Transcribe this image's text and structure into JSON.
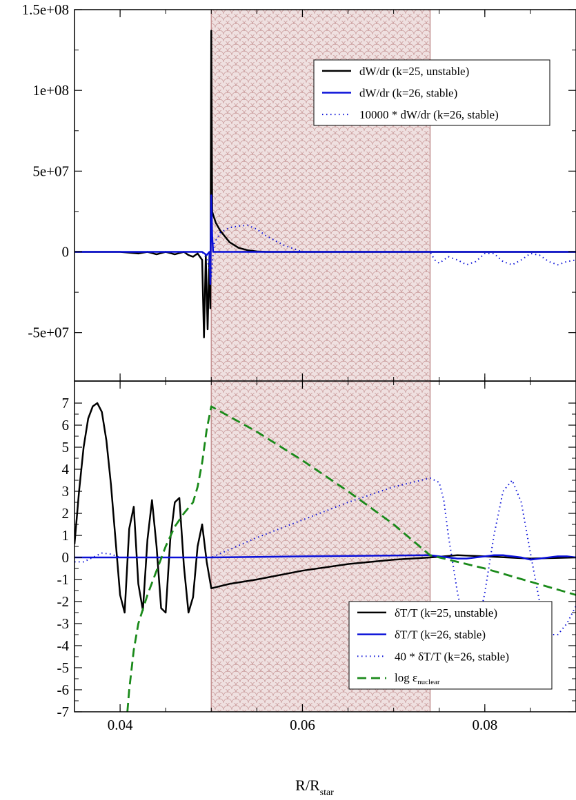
{
  "colors": {
    "black": "#000000",
    "blue": "#0a10d8",
    "green": "#1a8a1a",
    "shade_fill": "#efe0e0",
    "shade_pattern": "#c49292"
  },
  "xlabel_main": "R/R",
  "xlabel_sub": "star",
  "chart_data": [
    {
      "type": "line",
      "panel": "top",
      "xlim": [
        0.035,
        0.09
      ],
      "ylim": [
        -80000000,
        150000000
      ],
      "xticks": [
        0.04,
        0.06,
        0.08
      ],
      "yticks": [
        {
          "value": 150000000,
          "label": "1.5e+08"
        },
        {
          "value": 100000000,
          "label": "1e+08"
        },
        {
          "value": 50000000,
          "label": "5e+07"
        },
        {
          "value": 0,
          "label": "0"
        },
        {
          "value": -50000000,
          "label": "-5e+07"
        }
      ],
      "shaded_region": [
        0.05,
        0.074
      ],
      "legend_position": "top-right",
      "series": [
        {
          "name": "dW/dr (k=25, unstable)",
          "style": "solid-black",
          "x": [
            0.035,
            0.04,
            0.042,
            0.043,
            0.044,
            0.045,
            0.046,
            0.047,
            0.0475,
            0.048,
            0.0485,
            0.049,
            0.0492,
            0.0494,
            0.0496,
            0.0498,
            0.0499,
            0.05,
            0.0501,
            0.0502,
            0.0505,
            0.051,
            0.052,
            0.053,
            0.054,
            0.055,
            0.056,
            0.06,
            0.09
          ],
          "y": [
            0,
            0,
            -1000000,
            0,
            -1500000,
            0,
            -1500000,
            0,
            -2000000,
            -3000000,
            -1000000,
            -5000000,
            -53000000,
            -2000000,
            -48000000,
            -2000000,
            -35000000,
            137000000,
            25000000,
            23000000,
            18000000,
            13000000,
            6000000,
            2500000,
            1000000,
            300000,
            0,
            0,
            0
          ]
        },
        {
          "name": "dW/dr (k=26, stable)",
          "style": "solid-blue",
          "x": [
            0.035,
            0.049,
            0.0495,
            0.0498,
            0.0499,
            0.05,
            0.0501,
            0.0502,
            0.0505,
            0.09
          ],
          "y": [
            0,
            0,
            -2000000,
            0,
            -20000000,
            35000000,
            10000000,
            0,
            0,
            0
          ]
        },
        {
          "name": "10000 * dW/dr (k=26, stable)",
          "style": "dotted-blue",
          "x": [
            0.035,
            0.049,
            0.0495,
            0.05,
            0.0503,
            0.051,
            0.052,
            0.053,
            0.054,
            0.055,
            0.056,
            0.058,
            0.06,
            0.074,
            0.0745,
            0.075,
            0.076,
            0.077,
            0.078,
            0.079,
            0.08,
            0.081,
            0.082,
            0.083,
            0.084,
            0.085,
            0.086,
            0.087,
            0.088,
            0.089,
            0.09
          ],
          "y": [
            0,
            0,
            -4000000,
            -15000000,
            5000000,
            12000000,
            15000000,
            16000000,
            16500000,
            14000000,
            10000000,
            4000000,
            0,
            0,
            -5000000,
            -7000000,
            -3000000,
            -5000000,
            -8000000,
            -6000000,
            -1000000,
            -1000000,
            -6000000,
            -8000000,
            -5000000,
            -1000000,
            -2000000,
            -6000000,
            -8000000,
            -6000000,
            -5000000
          ]
        }
      ]
    },
    {
      "type": "line",
      "panel": "bottom",
      "xlim": [
        0.035,
        0.09
      ],
      "ylim": [
        -7,
        8
      ],
      "xticks": [
        0.04,
        0.06,
        0.08
      ],
      "xtick_labels": [
        "0.04",
        "0.06",
        "0.08"
      ],
      "yticks": [
        {
          "value": 7,
          "label": "7"
        },
        {
          "value": 6,
          "label": "6"
        },
        {
          "value": 5,
          "label": "5"
        },
        {
          "value": 4,
          "label": "4"
        },
        {
          "value": 3,
          "label": "3"
        },
        {
          "value": 2,
          "label": "2"
        },
        {
          "value": 1,
          "label": "1"
        },
        {
          "value": 0,
          "label": "0"
        },
        {
          "value": -1,
          "label": "-1"
        },
        {
          "value": -2,
          "label": "-2"
        },
        {
          "value": -3,
          "label": "-3"
        },
        {
          "value": -4,
          "label": "-4"
        },
        {
          "value": -5,
          "label": "-5"
        },
        {
          "value": -6,
          "label": "-6"
        },
        {
          "value": -7,
          "label": "-7"
        }
      ],
      "shaded_region": [
        0.05,
        0.074
      ],
      "legend_position": "bottom-right",
      "series": [
        {
          "name": "δT/T (k=25, unstable)",
          "style": "solid-black",
          "x": [
            0.035,
            0.0355,
            0.036,
            0.0365,
            0.037,
            0.0375,
            0.038,
            0.0385,
            0.039,
            0.0395,
            0.04,
            0.0405,
            0.041,
            0.0415,
            0.042,
            0.0425,
            0.043,
            0.0435,
            0.044,
            0.0445,
            0.045,
            0.0455,
            0.046,
            0.0465,
            0.047,
            0.0475,
            0.048,
            0.0485,
            0.049,
            0.0495,
            0.05,
            0.052,
            0.055,
            0.06,
            0.065,
            0.07,
            0.074,
            0.077,
            0.08,
            0.085,
            0.09
          ],
          "y": [
            0.6,
            3.0,
            5.0,
            6.3,
            6.85,
            7.0,
            6.6,
            5.3,
            3.3,
            0.8,
            -1.7,
            -2.5,
            1.3,
            2.3,
            -1.2,
            -2.4,
            0.8,
            2.6,
            0.5,
            -2.3,
            -2.5,
            0.8,
            2.5,
            2.7,
            -0.4,
            -2.5,
            -1.8,
            0.5,
            1.5,
            -0.2,
            -1.4,
            -1.2,
            -1.0,
            -0.6,
            -0.3,
            -0.1,
            0.0,
            0.1,
            0.05,
            -0.05,
            0.0
          ]
        },
        {
          "name": "δT/T (k=26, stable)",
          "style": "solid-blue",
          "x": [
            0.035,
            0.05,
            0.06,
            0.074,
            0.075,
            0.076,
            0.077,
            0.078,
            0.079,
            0.08,
            0.081,
            0.082,
            0.083,
            0.084,
            0.085,
            0.086,
            0.087,
            0.088,
            0.089,
            0.09
          ],
          "y": [
            0.0,
            0.0,
            0.05,
            0.1,
            0.05,
            0.0,
            -0.05,
            -0.05,
            0.0,
            0.05,
            0.1,
            0.1,
            0.05,
            0.0,
            -0.1,
            -0.05,
            0.0,
            0.05,
            0.05,
            0.0
          ]
        },
        {
          "name": "40 * δT/T (k=26, stable)",
          "style": "dotted-blue",
          "x": [
            0.035,
            0.036,
            0.037,
            0.038,
            0.039,
            0.04,
            0.045,
            0.05,
            0.055,
            0.06,
            0.065,
            0.07,
            0.074,
            0.075,
            0.0755,
            0.076,
            0.077,
            0.078,
            0.079,
            0.08,
            0.081,
            0.082,
            0.083,
            0.084,
            0.085,
            0.086,
            0.087,
            0.088,
            0.089,
            0.09
          ],
          "y": [
            -0.2,
            -0.2,
            0.0,
            0.2,
            0.15,
            0.0,
            0.0,
            0.0,
            0.9,
            1.7,
            2.5,
            3.2,
            3.6,
            3.4,
            2.6,
            1.0,
            -1.6,
            -3.5,
            -3.6,
            -1.6,
            1.0,
            3.0,
            3.5,
            2.5,
            0.2,
            -2.0,
            -3.5,
            -3.5,
            -3.0,
            -2.2
          ]
        },
        {
          "name": "log ε_nuclear",
          "style": "dashed-green",
          "x": [
            0.0408,
            0.041,
            0.0415,
            0.042,
            0.043,
            0.044,
            0.045,
            0.046,
            0.047,
            0.048,
            0.0485,
            0.049,
            0.0495,
            0.05,
            0.055,
            0.06,
            0.065,
            0.07,
            0.074,
            0.08,
            0.085,
            0.09
          ],
          "y": [
            -7.0,
            -6.0,
            -4.2,
            -3.0,
            -1.7,
            -0.6,
            0.5,
            1.4,
            2.0,
            2.5,
            3.2,
            4.3,
            5.8,
            6.85,
            5.7,
            4.4,
            3.0,
            1.5,
            0.1,
            -0.5,
            -1.1,
            -1.7
          ]
        }
      ]
    }
  ]
}
